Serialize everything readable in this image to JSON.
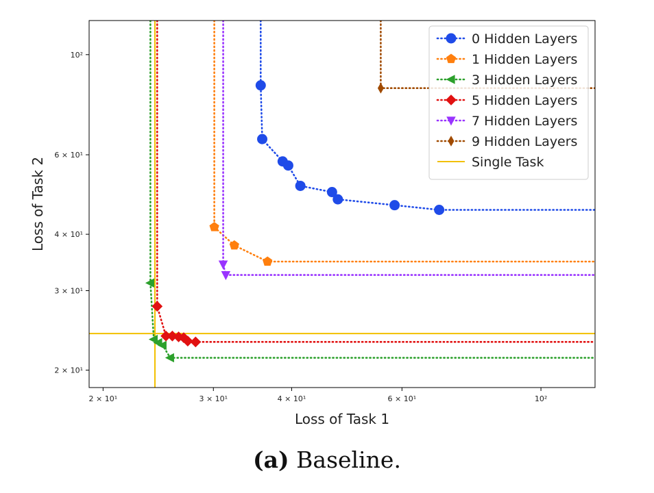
{
  "caption": {
    "label": "(a)",
    "text": "Baseline."
  },
  "chart_data": {
    "type": "line",
    "title": "",
    "xlabel": "Loss of Task 1",
    "ylabel": "Loss of Task 2",
    "xscale": "log",
    "yscale": "log",
    "xlim": [
      19,
      122
    ],
    "ylim": [
      18.3,
      119
    ],
    "xticks": [
      {
        "value": 20,
        "label": "2 × 10¹"
      },
      {
        "value": 30,
        "label": "3 × 10¹"
      },
      {
        "value": 40,
        "label": "4 × 10¹"
      },
      {
        "value": 60,
        "label": "6 × 10¹"
      },
      {
        "value": 100,
        "label": "10²"
      }
    ],
    "yticks": [
      {
        "value": 20,
        "label": "2 × 10¹"
      },
      {
        "value": 30,
        "label": "3 × 10¹"
      },
      {
        "value": 40,
        "label": "4 × 10¹"
      },
      {
        "value": 60,
        "label": "6 × 10¹"
      },
      {
        "value": 100,
        "label": "10²"
      }
    ],
    "grid": false,
    "legend_position": "top-right",
    "series": [
      {
        "name": "0 Hidden Layers",
        "color": "#1f4be8",
        "marker": "circle",
        "points": [
          [
            35.7,
            85.5
          ],
          [
            35.9,
            65
          ],
          [
            38.7,
            58
          ],
          [
            39.5,
            56.8
          ],
          [
            41.3,
            51.2
          ],
          [
            46.4,
            49.6
          ],
          [
            47.4,
            47.8
          ],
          [
            58.4,
            46.4
          ],
          [
            68.8,
            45.3
          ]
        ]
      },
      {
        "name": "1 Hidden Layers",
        "color": "#ff7f0e",
        "marker": "pentagon",
        "points": [
          [
            30.1,
            41.5
          ],
          [
            32.4,
            37.8
          ],
          [
            36.6,
            34.8
          ]
        ]
      },
      {
        "name": "3 Hidden Layers",
        "color": "#2ca02c",
        "marker": "triangle-left",
        "points": [
          [
            23.8,
            31.2
          ],
          [
            24.1,
            23.4
          ],
          [
            24.5,
            23
          ],
          [
            24.9,
            22.7
          ],
          [
            25.6,
            21.3
          ]
        ]
      },
      {
        "name": "5 Hidden Layers",
        "color": "#e11111",
        "marker": "diamond",
        "points": [
          [
            24.4,
            27.7
          ],
          [
            25.2,
            23.8
          ],
          [
            25.8,
            23.8
          ],
          [
            26.4,
            23.7
          ],
          [
            26.9,
            23.6
          ],
          [
            27.3,
            23.2
          ],
          [
            28.1,
            23.1
          ]
        ]
      },
      {
        "name": "7 Hidden Layers",
        "color": "#9933ff",
        "marker": "triangle-down",
        "points": [
          [
            31.1,
            34.3
          ],
          [
            31.4,
            32.5
          ]
        ]
      },
      {
        "name": "9 Hidden Layers",
        "color": "#a04a00",
        "marker": "thin-diamond",
        "points": [
          [
            55.5,
            84.3
          ]
        ]
      }
    ],
    "reference_lines": {
      "name": "Single Task",
      "color": "#f2c000",
      "x": 24.2,
      "y": 24.1
    }
  }
}
